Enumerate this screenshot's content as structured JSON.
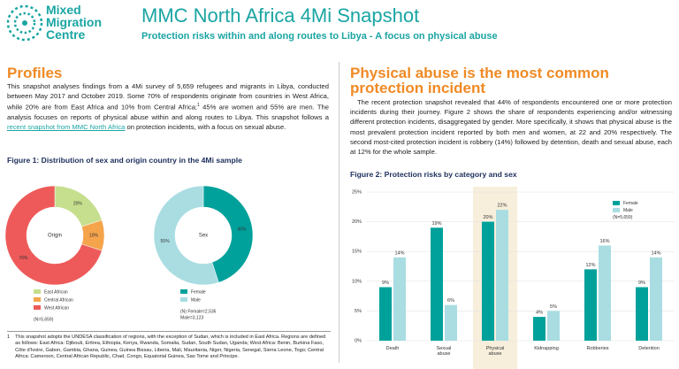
{
  "header": {
    "logo": [
      "Mixed",
      "Migration",
      "Centre"
    ],
    "title": "MMC North Africa 4Mi Snapshot",
    "subtitle": "Protection risks within and along routes to Libya - A focus on physical abuse"
  },
  "profiles": {
    "heading": "Profiles",
    "text": [
      "This snapshot analyses findings from a 4Mi survey of 5,659 refugees and migrants in Libya, conducted between May 2017 and October 2019. Some 70% of respondents originate from countries in West Africa, while 20% are from East Africa and 10% from Central Africa;",
      "1",
      " 45% are women and 55% are men. The analysis focuses on reports of physical abuse within and along routes to Libya. This snapshot follows a ",
      "recent snapshot from MMC North Africa",
      " on protection incidents, with a focus on sexual abuse."
    ],
    "figure_title": "Figure 1: Distribution of sex and origin country in the 4Mi sample"
  },
  "footnote": {
    "number": "1",
    "text": "This snapshot adopts the UNDESA classification of regions, with the exception of Sudan, which is included in East Africa. Regions are defined as follows: East Africa: Djibouti, Eritrea, Ethiopia, Kenya, Rwanda, Somalia, Sudan, South Sudan, Uganda; West Africa: Benin, Burkina Faso, Côte d'Ivoire, Gabon, Gambia, Ghana, Guinea, Guinea Bissau, Liberia, Mali, Mauritania, Niger, Nigeria, Senegal, Sierra Leone, Togo; Central Africa: Cameroon, Central African Republic, Chad, Congo, Equatorial Guinea, Sao Tome and Principe."
  },
  "abuse": {
    "heading": "Physical abuse is the most common protection incident",
    "text": "The recent protection snapshot revealed that 44% of respondents encountered one or more protection incidents during their journey. Figure 2 shows the share of respondents experiencing and/or witnessing different protection incidents, disaggregated by gender. More specifically, it shows that physical abuse is the most prevalent protection incident reported by both men and women, at 22 and 20% respectively. The second most-cited protection incident is robbery (14%) followed by detention, death and sexual abuse, each at 12% for the whole sample.",
    "figure_title": "Figure 2: Protection risks by category and sex"
  },
  "chart_data": [
    {
      "type": "pie",
      "center_label": "Origin",
      "categories": [
        "East African",
        "Central African",
        "West African"
      ],
      "values": [
        20,
        10,
        70
      ],
      "value_labels": [
        "20%",
        "10%",
        "70%"
      ],
      "colors": [
        "#c6df8e",
        "#f5a44c",
        "#ee5a5a"
      ],
      "note": [
        "(N=5,659)"
      ]
    },
    {
      "type": "pie",
      "center_label": "Sex",
      "categories": [
        "Female",
        "Male"
      ],
      "values": [
        45,
        55
      ],
      "value_labels": [
        "45%",
        "55%"
      ],
      "colors": [
        "#00a19b",
        "#a9dde2"
      ],
      "note": [
        "(N) Female=2,536",
        "Male=3,123"
      ]
    },
    {
      "type": "bar",
      "categories": [
        "Death",
        "Sexual abuse",
        "Physical abuse",
        "Kidnapping",
        "Robberies",
        "Detention"
      ],
      "series": [
        {
          "name": "Female",
          "color": "#00a19b",
          "values": [
            9,
            19,
            20,
            4,
            12,
            9
          ],
          "value_labels": [
            "9%",
            "19%",
            "20%",
            "4%",
            "12%",
            "9%"
          ]
        },
        {
          "name": "Male",
          "color": "#a9dde2",
          "values": [
            14,
            6,
            22,
            5,
            16,
            14
          ],
          "value_labels": [
            "14%",
            "6%",
            "22%",
            "5%",
            "16%",
            "14%"
          ]
        }
      ],
      "ylim": [
        0,
        25
      ],
      "yticks": [
        {
          "value": 0,
          "label": "0%"
        },
        {
          "value": 5,
          "label": "5%"
        },
        {
          "value": 10,
          "label": "10%"
        },
        {
          "value": 15,
          "label": "15%"
        },
        {
          "value": 20,
          "label": "20%"
        },
        {
          "value": 25,
          "label": "25%"
        }
      ],
      "grid": true,
      "highlight": "Physical abuse",
      "note": "(N=5,659)"
    }
  ]
}
